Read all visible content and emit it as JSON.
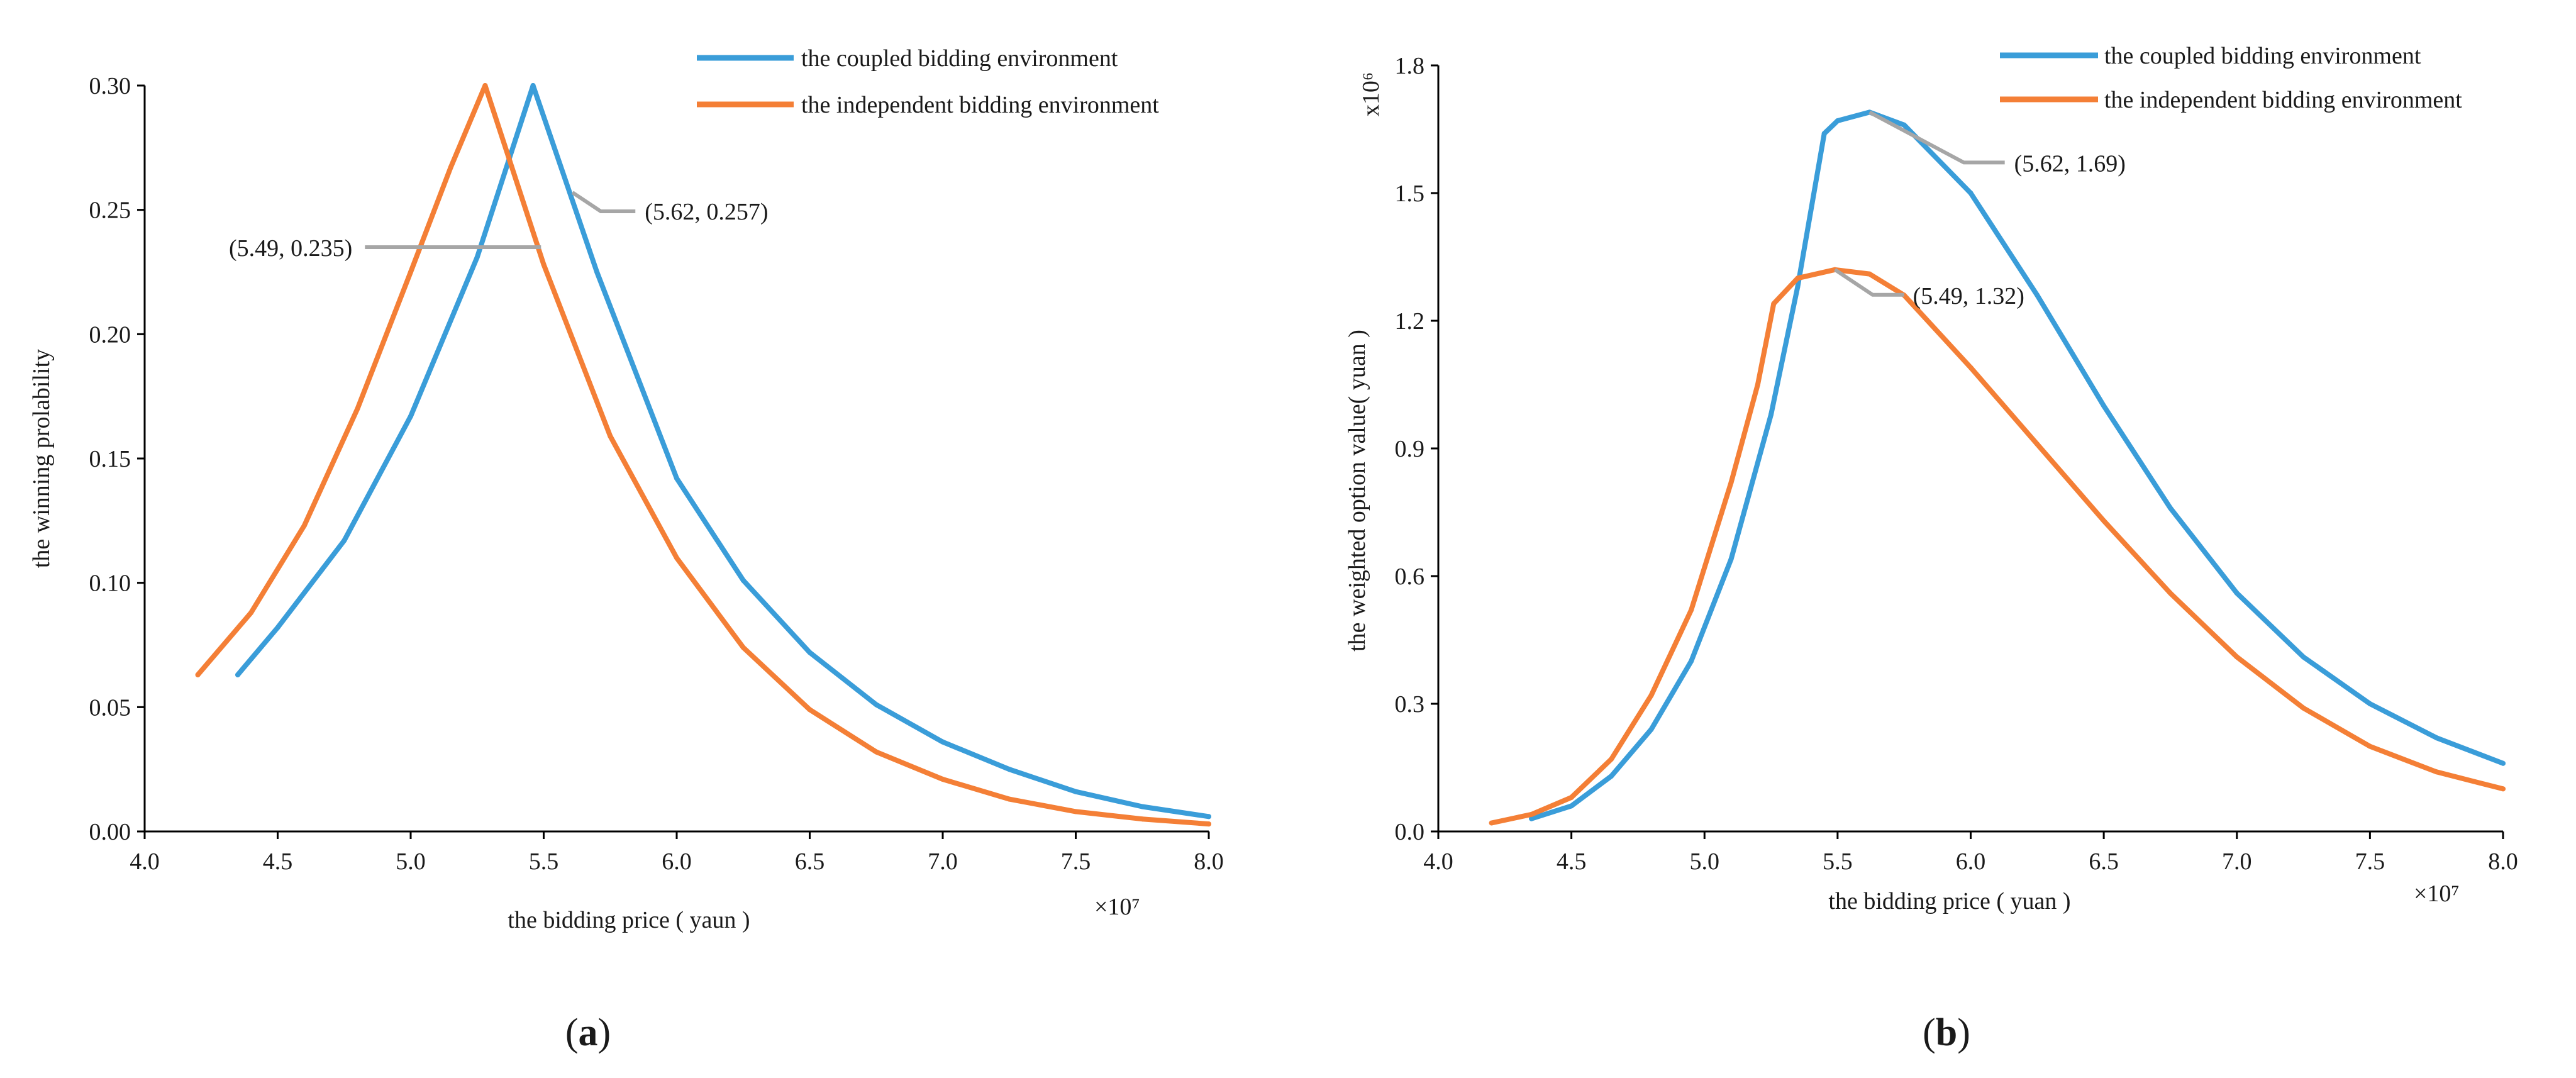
{
  "colors": {
    "coupled": "#3a9dd9",
    "independent": "#f47f36",
    "leader": "#a6a6a6"
  },
  "chart_data": [
    {
      "id": "a",
      "type": "line",
      "panel_label": "a",
      "xlabel": "the bidding price ( yaun )",
      "ylabel": "the winning prolability",
      "x_multiplier_label": "×10⁷",
      "xlim": [
        4.0,
        8.0
      ],
      "ylim": [
        0.0,
        0.3
      ],
      "xticks": [
        "4.0",
        "4.5",
        "5.0",
        "5.5",
        "6.0",
        "6.5",
        "7.0",
        "7.5",
        "8.0"
      ],
      "yticks": [
        "0.00",
        "0.05",
        "0.10",
        "0.15",
        "0.20",
        "0.25",
        "0.30"
      ],
      "legend": [
        "the coupled bidding environment",
        "the independent bidding environment"
      ],
      "series": [
        {
          "name": "the coupled bidding environment",
          "color_key": "coupled",
          "x": [
            4.35,
            4.5,
            4.75,
            5.0,
            5.25,
            5.46,
            5.7,
            6.0,
            6.25,
            6.5,
            6.75,
            7.0,
            7.25,
            7.5,
            7.75,
            8.0
          ],
          "y": [
            0.063,
            0.082,
            0.117,
            0.167,
            0.231,
            0.3,
            0.225,
            0.142,
            0.101,
            0.072,
            0.051,
            0.036,
            0.025,
            0.016,
            0.01,
            0.006
          ]
        },
        {
          "name": "the independent bidding environment",
          "color_key": "independent",
          "x": [
            4.2,
            4.4,
            4.6,
            4.8,
            5.0,
            5.15,
            5.28,
            5.5,
            5.75,
            6.0,
            6.25,
            6.5,
            6.75,
            7.0,
            7.25,
            7.5,
            7.75,
            8.0
          ],
          "y": [
            0.063,
            0.088,
            0.123,
            0.17,
            0.225,
            0.267,
            0.3,
            0.228,
            0.159,
            0.11,
            0.074,
            0.049,
            0.032,
            0.021,
            0.013,
            0.008,
            0.005,
            0.003
          ]
        }
      ],
      "annotations": [
        {
          "text": "(5.62, 0.257)",
          "x": 5.62,
          "y": 0.257,
          "side": "right"
        },
        {
          "text": "(5.49, 0.235)",
          "x": 5.49,
          "y": 0.235,
          "side": "left"
        }
      ]
    },
    {
      "id": "b",
      "type": "line",
      "panel_label": "b",
      "xlabel": "the bidding price ( yuan )",
      "ylabel": "the weighted option value( yuan )",
      "y_multiplier_label": "x10⁶",
      "x_multiplier_label": "×10⁷",
      "xlim": [
        4.0,
        8.0
      ],
      "ylim": [
        0.0,
        1.8
      ],
      "xticks": [
        "4.0",
        "4.5",
        "5.0",
        "5.5",
        "6.0",
        "6.5",
        "7.0",
        "7.5",
        "8.0"
      ],
      "yticks": [
        "0.0",
        "0.3",
        "0.6",
        "0.9",
        "1.2",
        "1.5",
        "1.8"
      ],
      "legend": [
        "the coupled bidding environment",
        "the independent bidding environment"
      ],
      "series": [
        {
          "name": "the coupled bidding environment",
          "color_key": "coupled",
          "x": [
            4.35,
            4.5,
            4.65,
            4.8,
            4.95,
            5.1,
            5.25,
            5.35,
            5.45,
            5.5,
            5.62,
            5.75,
            6.0,
            6.25,
            6.5,
            6.75,
            7.0,
            7.25,
            7.5,
            7.75,
            8.0
          ],
          "y": [
            0.03,
            0.06,
            0.13,
            0.24,
            0.4,
            0.64,
            0.98,
            1.28,
            1.64,
            1.67,
            1.69,
            1.66,
            1.5,
            1.26,
            1.0,
            0.76,
            0.56,
            0.41,
            0.3,
            0.22,
            0.16
          ]
        },
        {
          "name": "the independent bidding environment",
          "color_key": "independent",
          "x": [
            4.2,
            4.35,
            4.5,
            4.65,
            4.8,
            4.95,
            5.1,
            5.2,
            5.26,
            5.35,
            5.49,
            5.62,
            5.75,
            6.0,
            6.25,
            6.5,
            6.75,
            7.0,
            7.25,
            7.5,
            7.75,
            8.0
          ],
          "y": [
            0.02,
            0.04,
            0.08,
            0.17,
            0.32,
            0.52,
            0.82,
            1.05,
            1.24,
            1.3,
            1.32,
            1.31,
            1.26,
            1.09,
            0.91,
            0.73,
            0.56,
            0.41,
            0.29,
            0.2,
            0.14,
            0.1
          ]
        }
      ],
      "annotations": [
        {
          "text": "(5.62, 1.69)",
          "x": 5.62,
          "y": 1.69,
          "side": "right"
        },
        {
          "text": "(5.49, 1.32)",
          "x": 5.49,
          "y": 1.32,
          "side": "right"
        }
      ]
    }
  ]
}
